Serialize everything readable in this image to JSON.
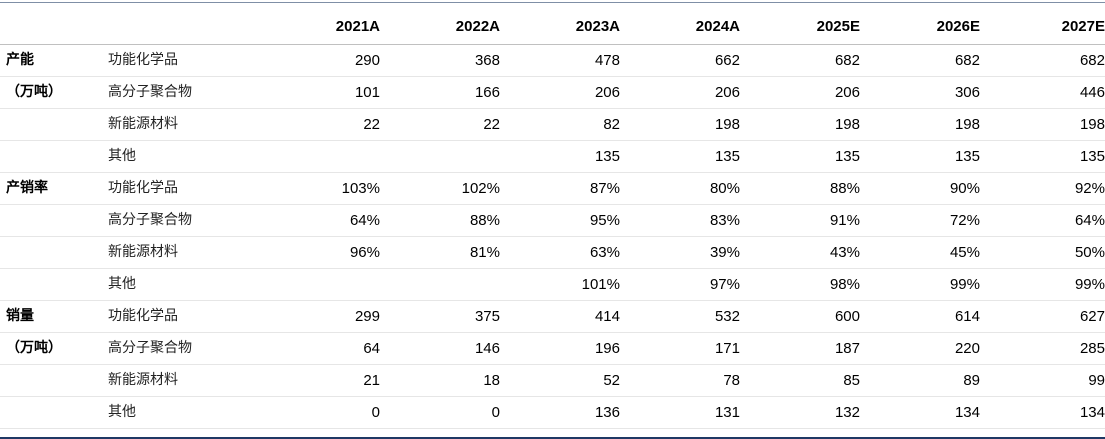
{
  "table": {
    "columns": [
      "",
      "",
      "2021A",
      "2022A",
      "2023A",
      "2024A",
      "2025E",
      "2026E",
      "2027E"
    ],
    "rows": [
      {
        "group": "产能",
        "item": "功能化学品",
        "values": [
          "290",
          "368",
          "478",
          "662",
          "682",
          "682",
          "682"
        ],
        "section_start": true
      },
      {
        "group": "（万吨）",
        "item": "高分子聚合物",
        "values": [
          "101",
          "166",
          "206",
          "206",
          "206",
          "306",
          "446"
        ]
      },
      {
        "group": "",
        "item": "新能源材料",
        "values": [
          "22",
          "22",
          "82",
          "198",
          "198",
          "198",
          "198"
        ]
      },
      {
        "group": "",
        "item": "其他",
        "values": [
          "",
          "",
          "135",
          "135",
          "135",
          "135",
          "135"
        ]
      },
      {
        "group": "产销率",
        "item": "功能化学品",
        "values": [
          "103%",
          "102%",
          "87%",
          "80%",
          "88%",
          "90%",
          "92%"
        ],
        "section_start": true
      },
      {
        "group": "",
        "item": "高分子聚合物",
        "values": [
          "64%",
          "88%",
          "95%",
          "83%",
          "91%",
          "72%",
          "64%"
        ]
      },
      {
        "group": "",
        "item": "新能源材料",
        "values": [
          "96%",
          "81%",
          "63%",
          "39%",
          "43%",
          "45%",
          "50%"
        ]
      },
      {
        "group": "",
        "item": "其他",
        "values": [
          "",
          "",
          "101%",
          "97%",
          "98%",
          "99%",
          "99%"
        ]
      },
      {
        "group": "销量",
        "item": "功能化学品",
        "values": [
          "299",
          "375",
          "414",
          "532",
          "600",
          "614",
          "627"
        ],
        "section_start": true
      },
      {
        "group": "（万吨）",
        "item": "高分子聚合物",
        "values": [
          "64",
          "146",
          "196",
          "171",
          "187",
          "220",
          "285"
        ]
      },
      {
        "group": "",
        "item": "新能源材料",
        "values": [
          "21",
          "18",
          "52",
          "78",
          "85",
          "89",
          "99"
        ]
      },
      {
        "group": "",
        "item": "其他",
        "values": [
          "0",
          "0",
          "136",
          "131",
          "132",
          "134",
          "134"
        ]
      }
    ]
  }
}
